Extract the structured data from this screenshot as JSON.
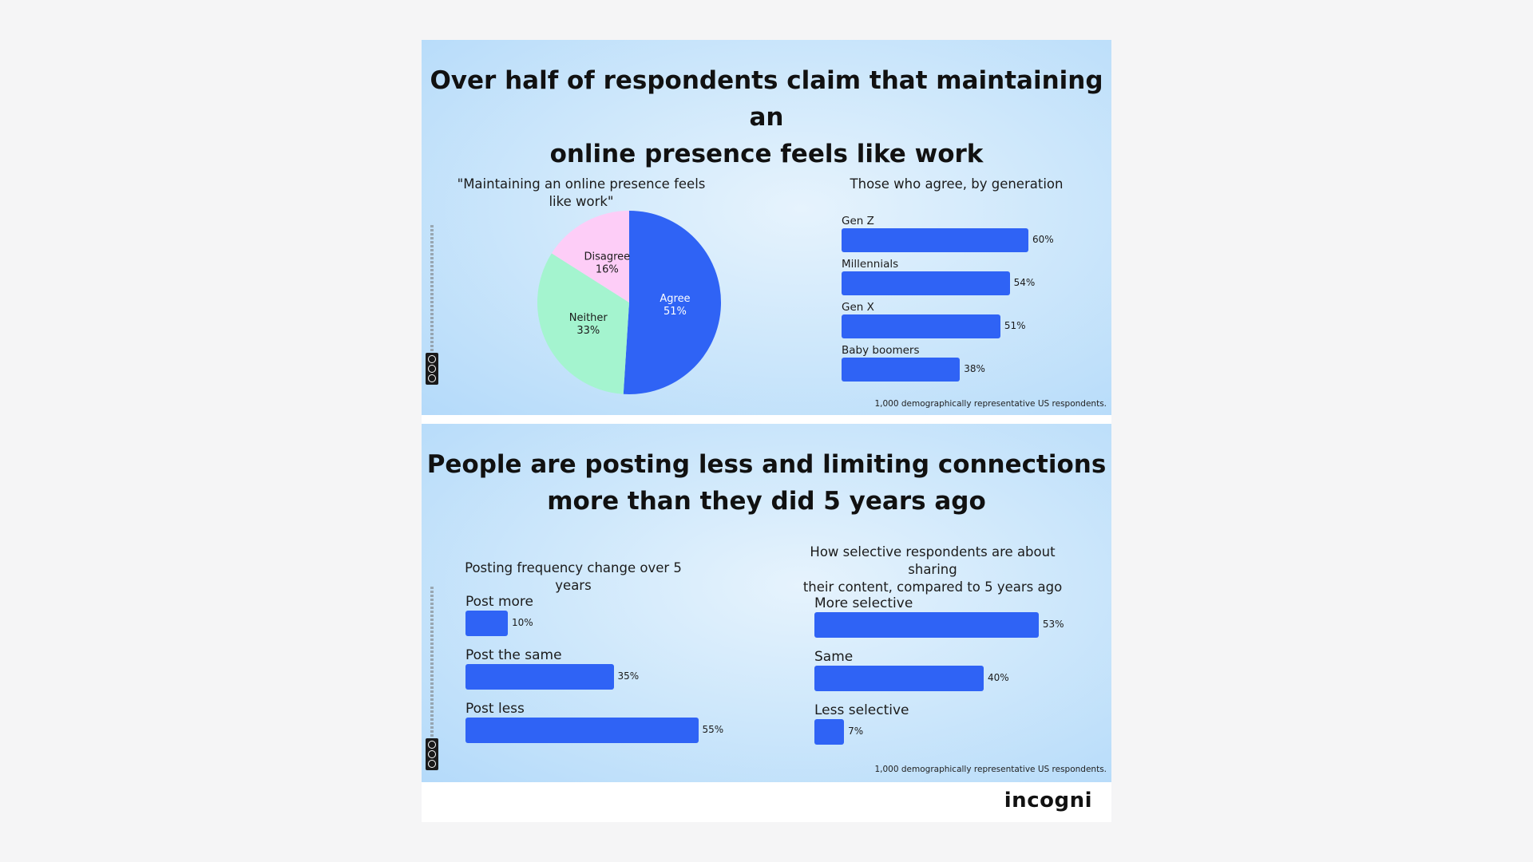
{
  "brand": {
    "logo": "incogni"
  },
  "panel1": {
    "title_line1": "Over half of respondents claim that maintaining an",
    "title_line2": "online presence feels like work",
    "footnote": "1,000 demographically representative US respondents."
  },
  "panel2": {
    "title_line1": "People are posting less and limiting connections",
    "title_line2": "more than they did 5 years ago",
    "footnote": "1,000 demographically representative US respondents."
  },
  "colors": {
    "bar": "#2f63f5",
    "agree": "#2f63f5",
    "neither": "#a4f4cf",
    "disagree": "#fdcdf7"
  },
  "chart_data": [
    {
      "type": "pie",
      "title": "\"Maintaining an online presence feels like work\"",
      "slices": [
        {
          "label": "Agree",
          "value": 51,
          "display": "51%",
          "color": "#2f63f5"
        },
        {
          "label": "Neither",
          "value": 33,
          "display": "33%",
          "color": "#a4f4cf"
        },
        {
          "label": "Disagree",
          "value": 16,
          "display": "16%",
          "color": "#fdcdf7"
        }
      ]
    },
    {
      "type": "bar",
      "orientation": "horizontal",
      "title": "Those who agree, by generation",
      "categories": [
        "Gen Z",
        "Millennials",
        "Gen X",
        "Baby boomers"
      ],
      "values": [
        60,
        54,
        51,
        38
      ],
      "value_labels": [
        "60%",
        "54%",
        "51%",
        "38%"
      ]
    },
    {
      "type": "bar",
      "orientation": "horizontal",
      "title": "Posting frequency change over 5 years",
      "categories": [
        "Post more",
        "Post the same",
        "Post less"
      ],
      "values": [
        10,
        35,
        55
      ],
      "value_labels": [
        "10%",
        "35%",
        "55%"
      ]
    },
    {
      "type": "bar",
      "orientation": "horizontal",
      "title_line1": "How selective respondents are about sharing",
      "title_line2": "their content, compared to 5 years ago",
      "categories": [
        "More selective",
        "Same",
        "Less selective"
      ],
      "values": [
        53,
        40,
        7
      ],
      "value_labels": [
        "53%",
        "40%",
        "7%"
      ]
    }
  ]
}
